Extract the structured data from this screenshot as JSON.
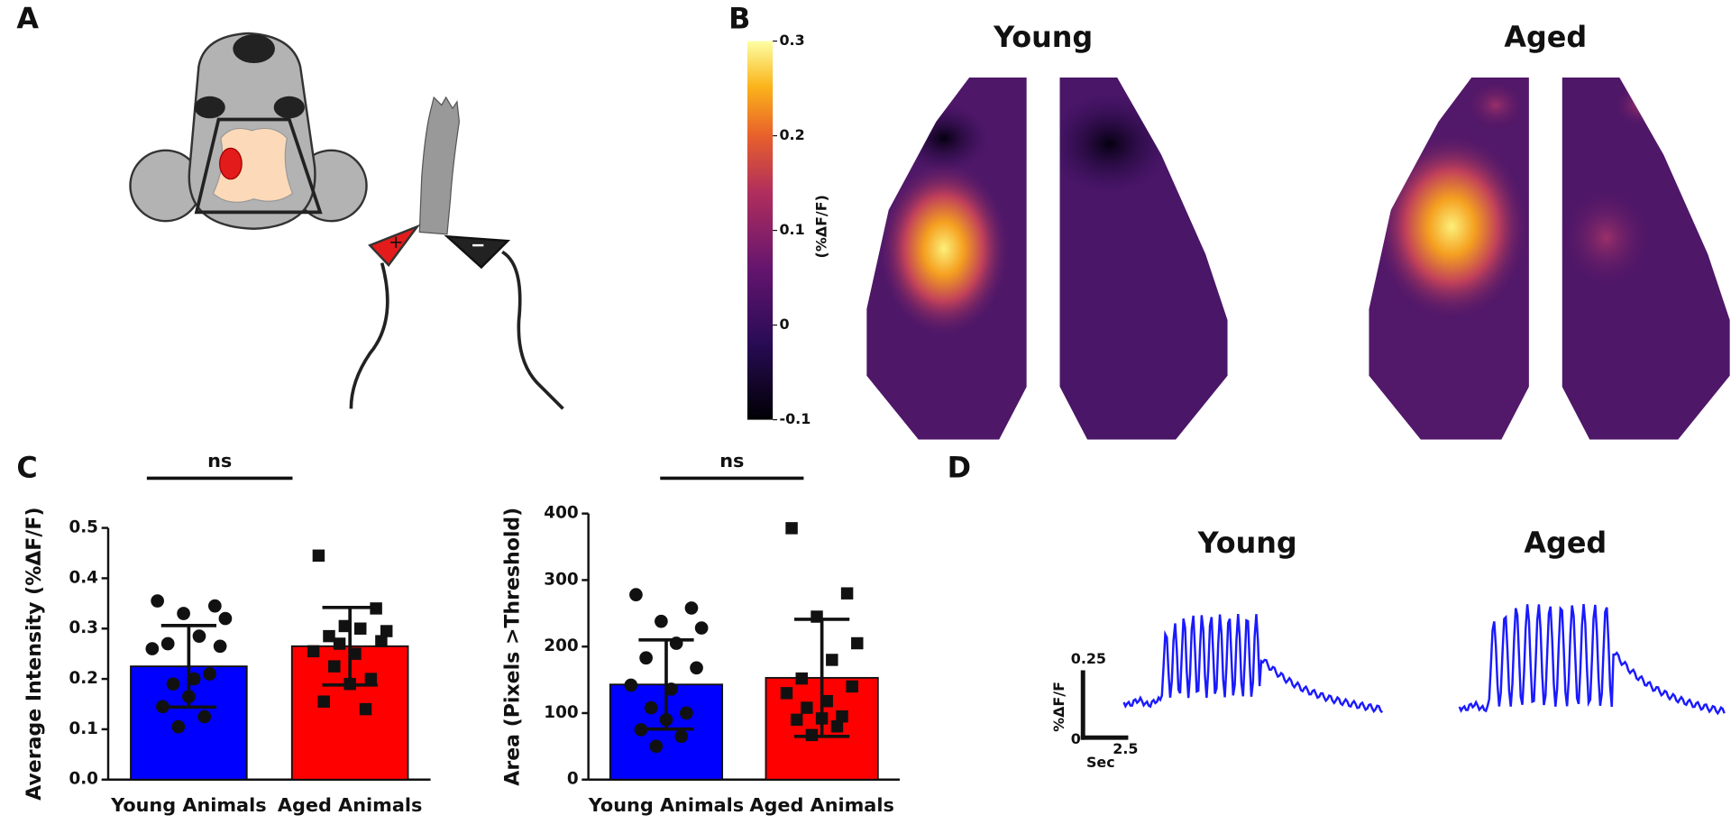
{
  "panel_labels": [
    "A",
    "B",
    "C",
    "D"
  ],
  "heatmap": {
    "titles": [
      "Young",
      "Aged"
    ],
    "colorbar": {
      "label": "(%ΔF/F)",
      "lim": [
        -0.1,
        0.3
      ],
      "ticks": [
        0.3,
        0.2,
        0.1,
        0,
        -0.1
      ]
    }
  },
  "traces": {
    "titles": [
      "Young",
      "Aged"
    ],
    "scale_bar": {
      "y_top": 0.25,
      "y_bottom": 0,
      "y_unit": "%ΔF/F",
      "x_length": 2.5,
      "x_unit": "Sec"
    }
  },
  "chart_data": [
    {
      "type": "bar",
      "y_label": "Average Intensity (%ΔF/F)",
      "categories": [
        "Young Animals",
        "Aged Animals"
      ],
      "values": [
        0.225,
        0.265
      ],
      "errors": [
        0.081,
        0.077
      ],
      "colors": [
        "#0000ff",
        "#ff0000"
      ],
      "point_markers": [
        "circle",
        "square"
      ],
      "points": [
        [
          0.355,
          0.345,
          0.33,
          0.32,
          0.285,
          0.27,
          0.265,
          0.26,
          0.2,
          0.19,
          0.21,
          0.165,
          0.145,
          0.125,
          0.105
        ],
        [
          0.445,
          0.34,
          0.305,
          0.295,
          0.3,
          0.285,
          0.275,
          0.255,
          0.25,
          0.225,
          0.2,
          0.19,
          0.155,
          0.14,
          0.27
        ]
      ],
      "ylim": [
        0,
        0.5
      ],
      "yticks": [
        {
          "value": 0,
          "label": "0.0"
        },
        {
          "value": 0.1,
          "label": "0.1"
        },
        {
          "value": 0.2,
          "label": "0.2"
        },
        {
          "value": 0.3,
          "label": "0.3"
        },
        {
          "value": 0.4,
          "label": "0.4"
        },
        {
          "value": 0.5,
          "label": "0.5"
        }
      ],
      "annotation": "ns"
    },
    {
      "type": "bar",
      "y_label": "Area (Pixels >Threshold)",
      "categories": [
        "Young Animals",
        "Aged Animals"
      ],
      "values": [
        143,
        153
      ],
      "errors": [
        67,
        88
      ],
      "colors": [
        "#0000ff",
        "#ff0000"
      ],
      "point_markers": [
        "circle",
        "square"
      ],
      "points": [
        [
          278,
          258,
          238,
          228,
          205,
          183,
          168,
          142,
          136,
          108,
          100,
          90,
          75,
          65,
          50
        ],
        [
          378,
          280,
          245,
          205,
          180,
          152,
          140,
          130,
          118,
          108,
          95,
          92,
          90,
          80,
          67
        ]
      ],
      "ylim": [
        0,
        400
      ],
      "yticks": [
        0,
        100,
        200,
        300,
        400
      ],
      "annotation": "ns"
    }
  ]
}
